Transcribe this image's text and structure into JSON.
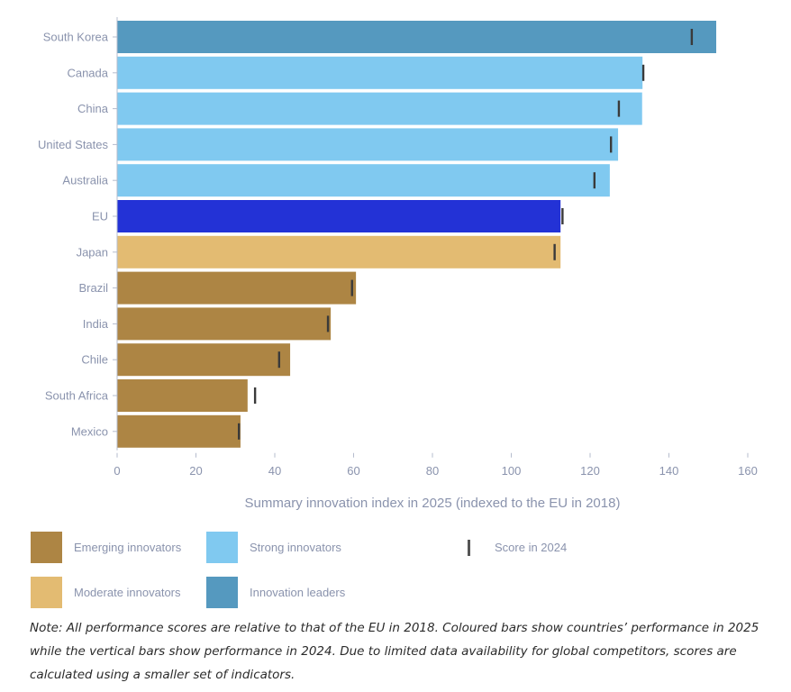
{
  "chart_data": {
    "type": "bar",
    "orientation": "horizontal",
    "title": "",
    "xlabel": "Summary innovation index in 2025 (indexed to the EU in 2018)",
    "ylabel": "",
    "xlim": [
      0,
      160
    ],
    "xticks": [
      0,
      20,
      40,
      60,
      80,
      100,
      120,
      140,
      160
    ],
    "grid": false,
    "legend_position": "bottom",
    "categories": [
      "South Korea",
      "Canada",
      "China",
      "United States",
      "Australia",
      "EU",
      "Japan",
      "Brazil",
      "India",
      "Chile",
      "South Africa",
      "Mexico"
    ],
    "series": [
      {
        "name": "Score in 2025",
        "values": [
          152.0,
          133.3,
          133.2,
          127.1,
          125.0,
          112.5,
          112.5,
          60.6,
          54.2,
          43.9,
          33.1,
          31.3
        ],
        "groups": [
          "Innovation leaders",
          "Strong innovators",
          "Strong innovators",
          "Strong innovators",
          "Strong innovators",
          "EU",
          "Moderate innovators",
          "Emerging innovators",
          "Emerging innovators",
          "Emerging innovators",
          "Emerging innovators",
          "Emerging innovators"
        ]
      },
      {
        "name": "Score in 2024",
        "marker": "vertical-tick",
        "values": [
          145.8,
          133.5,
          127.3,
          125.3,
          121.1,
          113.0,
          111.0,
          59.6,
          53.5,
          41.1,
          35.0,
          30.9
        ]
      }
    ],
    "group_colors": {
      "Innovation leaders": "#5599bf",
      "Strong innovators": "#80c9f0",
      "EU": "#2332d6",
      "Moderate innovators": "#e3bb72",
      "Emerging innovators": "#ad8544"
    },
    "marker_color": "#3a3a3a",
    "legend": [
      {
        "label": "Emerging innovators",
        "color": "#ad8544"
      },
      {
        "label": "Strong innovators",
        "color": "#80c9f0"
      },
      {
        "label": "Score in 2024",
        "marker": true
      },
      {
        "label": "Moderate innovators",
        "color": "#e3bb72"
      },
      {
        "label": "Innovation leaders",
        "color": "#5599bf"
      }
    ]
  },
  "note": "Note: All performance scores are relative to that of the EU in 2018. Coloured bars show countries’ performance in 2025 while the vertical bars show performance in 2024. Due to limited data availability for global competitors, scores are calculated using a smaller set of indicators."
}
